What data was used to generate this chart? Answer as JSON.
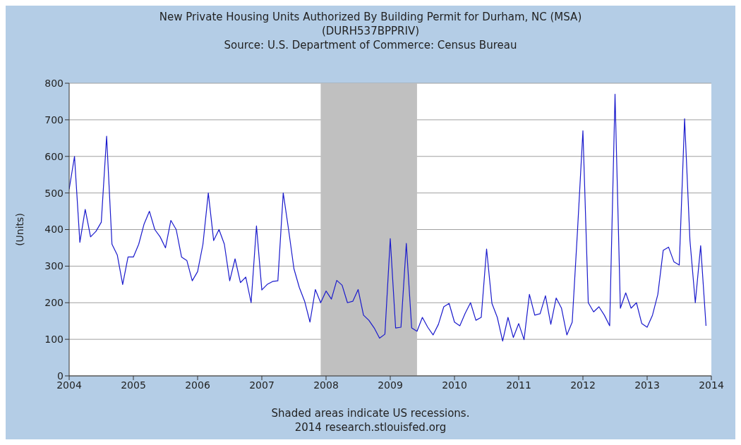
{
  "chart_data": {
    "type": "line",
    "title": "New Private Housing Units Authorized By Building Permit for Durham, NC (MSA)",
    "subtitle": "(DURH537BPPRIV)",
    "ylabel": "(Units)",
    "annotations": [
      "Source: U.S. Department of Commerce: Census Bureau",
      "Shaded areas indicate US recessions.",
      "2014 research.stlouisfed.org"
    ],
    "x": [
      "2004-01",
      "2004-02",
      "2004-03",
      "2004-04",
      "2004-05",
      "2004-06",
      "2004-07",
      "2004-08",
      "2004-09",
      "2004-10",
      "2004-11",
      "2004-12",
      "2005-01",
      "2005-02",
      "2005-03",
      "2005-04",
      "2005-05",
      "2005-06",
      "2005-07",
      "2005-08",
      "2005-09",
      "2005-10",
      "2005-11",
      "2005-12",
      "2006-01",
      "2006-02",
      "2006-03",
      "2006-04",
      "2006-05",
      "2006-06",
      "2006-07",
      "2006-08",
      "2006-09",
      "2006-10",
      "2006-11",
      "2006-12",
      "2007-01",
      "2007-02",
      "2007-03",
      "2007-04",
      "2007-05",
      "2007-06",
      "2007-07",
      "2007-08",
      "2007-09",
      "2007-10",
      "2007-11",
      "2007-12",
      "2008-01",
      "2008-02",
      "2008-03",
      "2008-04",
      "2008-05",
      "2008-06",
      "2008-07",
      "2008-08",
      "2008-09",
      "2008-10",
      "2008-11",
      "2008-12",
      "2009-01",
      "2009-02",
      "2009-03",
      "2009-04",
      "2009-05",
      "2009-06",
      "2009-07",
      "2009-08",
      "2009-09",
      "2009-10",
      "2009-11",
      "2009-12",
      "2010-01",
      "2010-02",
      "2010-03",
      "2010-04",
      "2010-05",
      "2010-06",
      "2010-07",
      "2010-08",
      "2010-09",
      "2010-10",
      "2010-11",
      "2010-12",
      "2011-01",
      "2011-02",
      "2011-03",
      "2011-04",
      "2011-05",
      "2011-06",
      "2011-07",
      "2011-08",
      "2011-09",
      "2011-10",
      "2011-11",
      "2011-12",
      "2012-01",
      "2012-02",
      "2012-03",
      "2012-04",
      "2012-05",
      "2012-06",
      "2012-07",
      "2012-08",
      "2012-09",
      "2012-10",
      "2012-11",
      "2012-12",
      "2013-01",
      "2013-02",
      "2013-03",
      "2013-04",
      "2013-05",
      "2013-06",
      "2013-07",
      "2013-08",
      "2013-09",
      "2013-10",
      "2013-11",
      "2013-12"
    ],
    "series": [
      {
        "color": "#1a1acc",
        "values": [
          510,
          600,
          365,
          455,
          380,
          395,
          420,
          655,
          360,
          330,
          250,
          325,
          325,
          360,
          415,
          450,
          400,
          380,
          350,
          425,
          400,
          325,
          315,
          260,
          285,
          360,
          500,
          370,
          400,
          360,
          260,
          320,
          255,
          270,
          200,
          410,
          235,
          250,
          258,
          260,
          500,
          400,
          293,
          242,
          204,
          147,
          236,
          200,
          232,
          210,
          261,
          248,
          200,
          204,
          236,
          166,
          152,
          131,
          103,
          114,
          375,
          131,
          133,
          362,
          131,
          122,
          160,
          133,
          112,
          141,
          189,
          198,
          147,
          137,
          171,
          200,
          152,
          160,
          347,
          198,
          160,
          95,
          160,
          105,
          143,
          99,
          223,
          166,
          170,
          219,
          141,
          213,
          185,
          112,
          147,
          400,
          670,
          200,
          175,
          189,
          166,
          137,
          770,
          185,
          227,
          185,
          200,
          143,
          133,
          166,
          223,
          343,
          352,
          312,
          303,
          703,
          370,
          200,
          356,
          137
        ]
      }
    ],
    "xlim": [
      "2004-01",
      "2014-01"
    ],
    "xticks": [
      "2004",
      "2005",
      "2006",
      "2007",
      "2008",
      "2009",
      "2010",
      "2011",
      "2012",
      "2013",
      "2014"
    ],
    "ylim": [
      0,
      800
    ],
    "yticks": [
      0,
      100,
      200,
      300,
      400,
      500,
      600,
      700,
      800
    ],
    "bands": [
      {
        "axis": "x",
        "from": "2007-12",
        "to": "2009-06",
        "color": "#c0c0c0"
      }
    ],
    "grid": "y",
    "marker": "none",
    "line_style": "solid"
  }
}
